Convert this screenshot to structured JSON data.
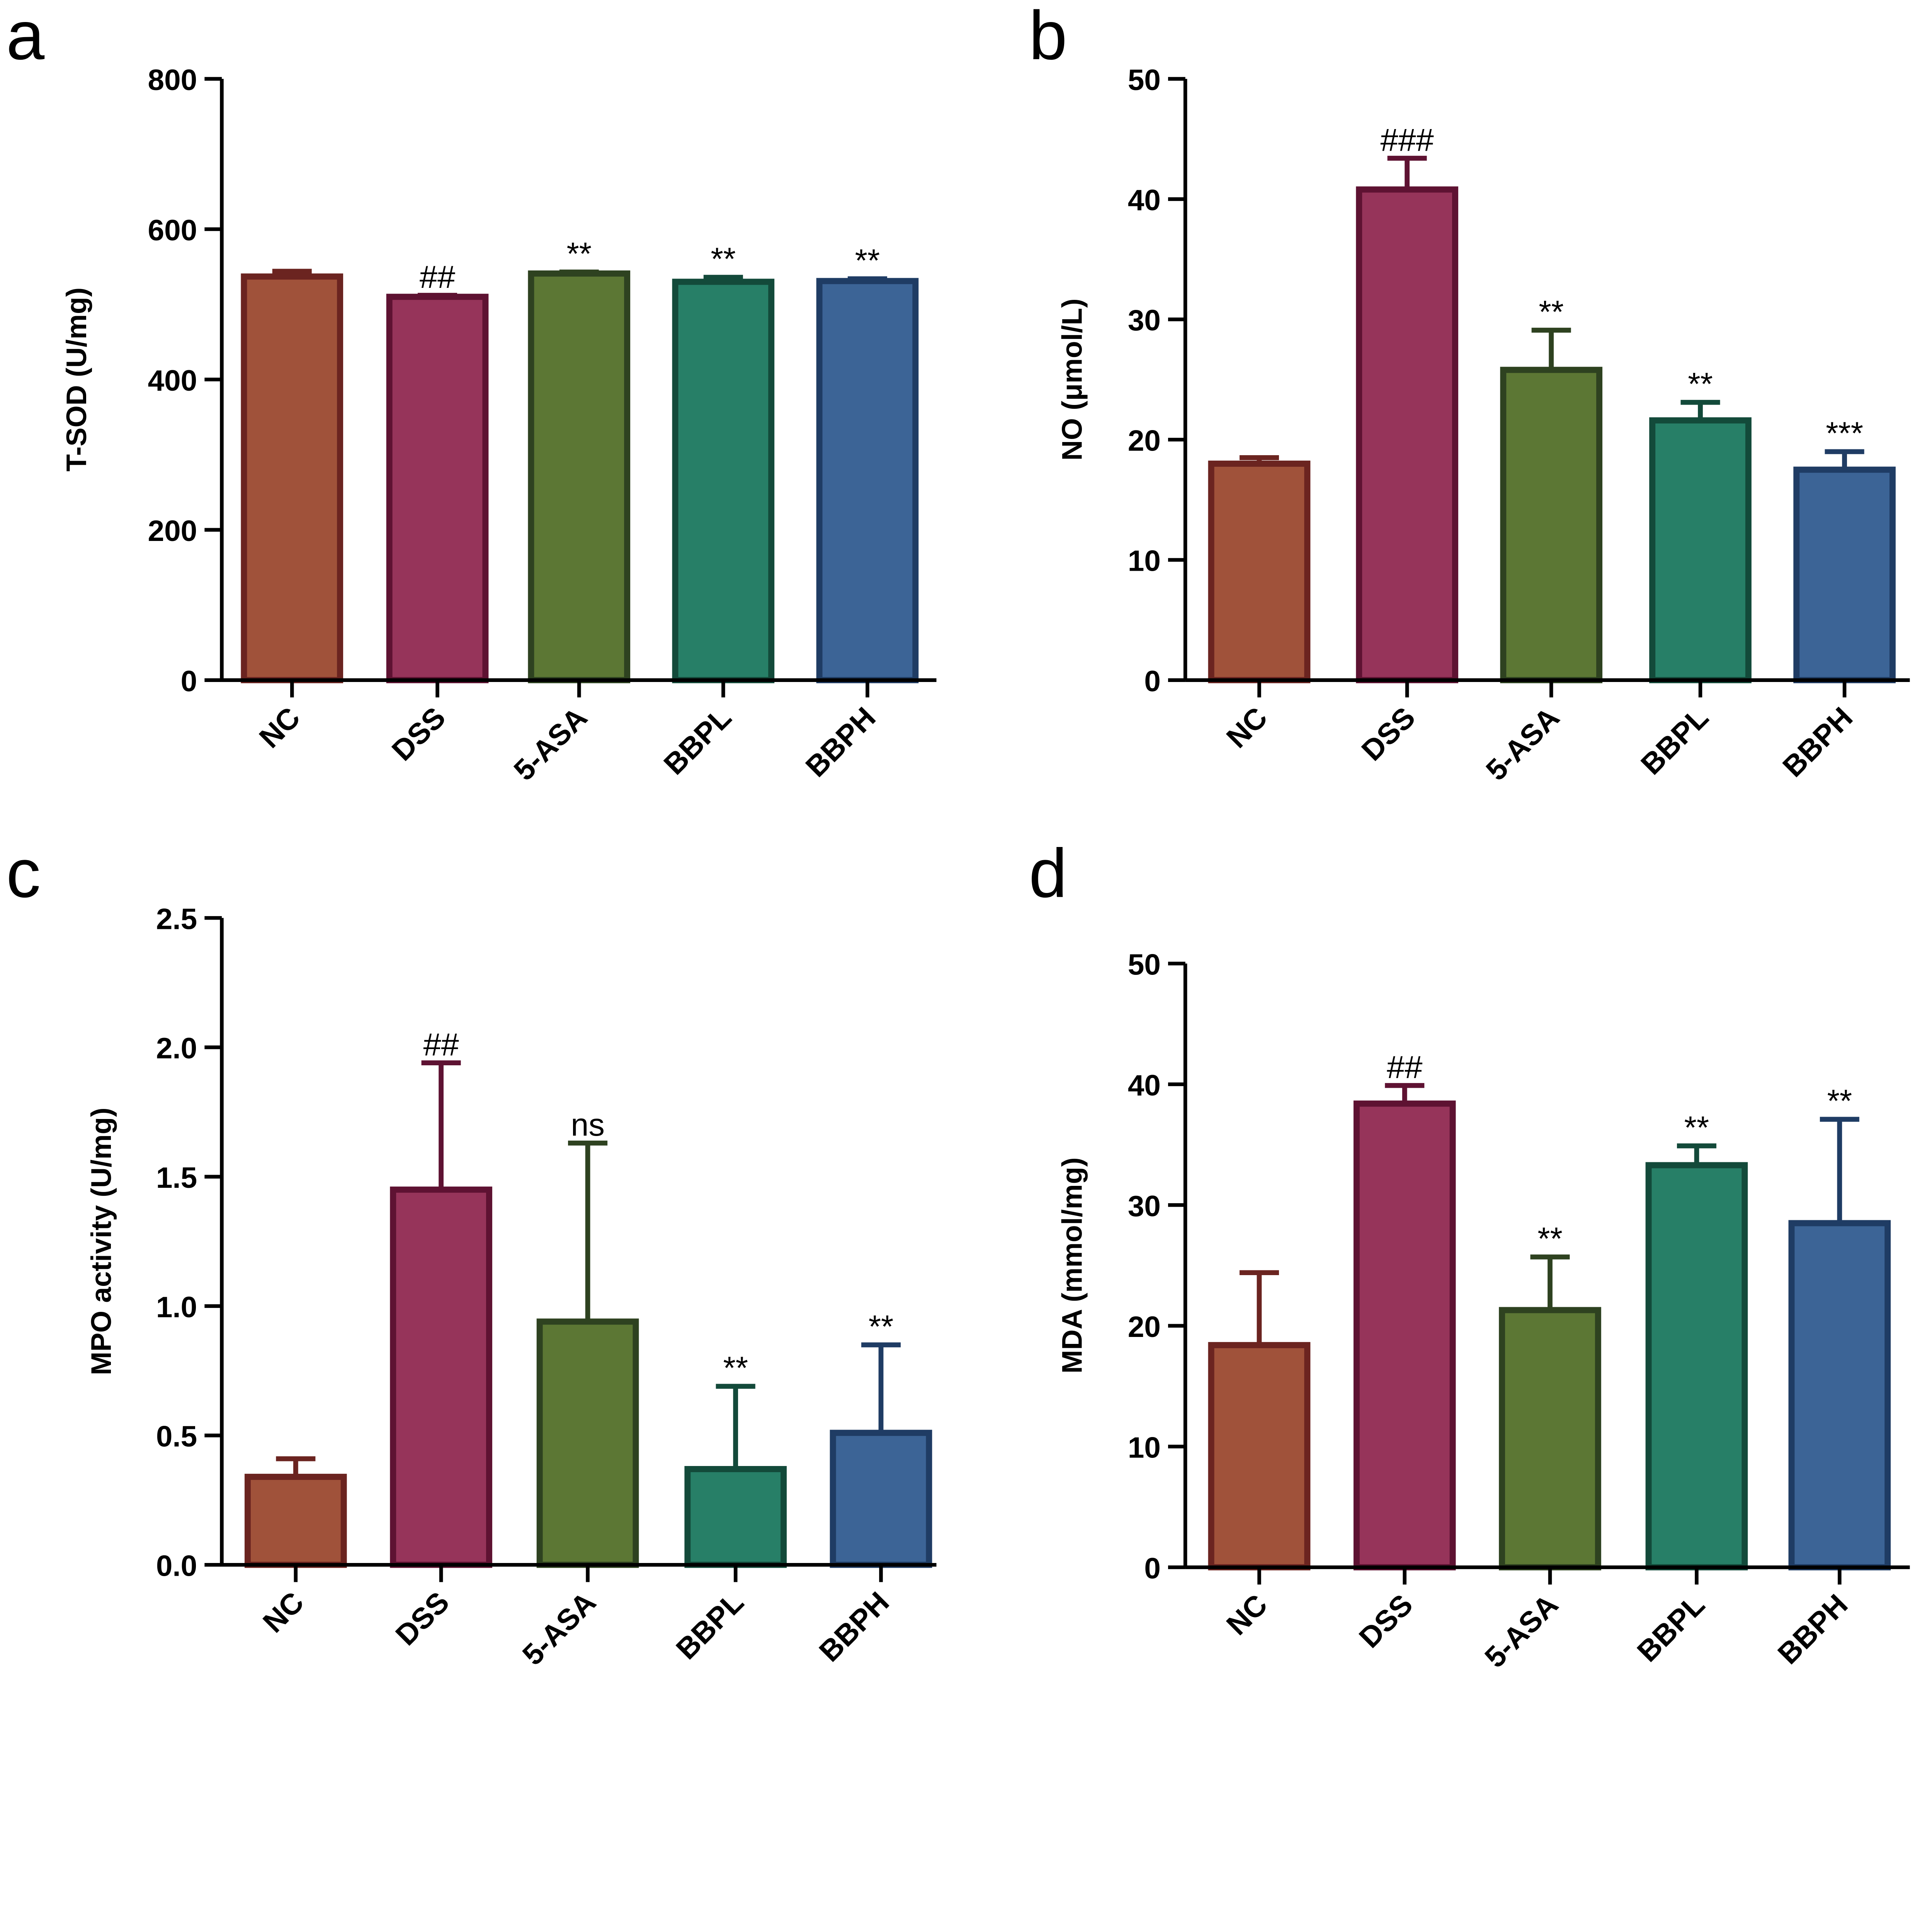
{
  "colors": {
    "NC": {
      "fill": "#A0523A",
      "stroke": "#6B2420"
    },
    "DSS": {
      "fill": "#96345A",
      "stroke": "#5E1232"
    },
    "5-ASA": {
      "fill": "#5C7734",
      "stroke": "#2E4220"
    },
    "BBPL": {
      "fill": "#277F67",
      "stroke": "#134A3A"
    },
    "BBPH": {
      "fill": "#3C6496",
      "stroke": "#1F3C64"
    }
  },
  "chart_data": [
    {
      "panel": "a",
      "type": "bar",
      "categories": [
        "NC",
        "DSS",
        "5-ASA",
        "BBPL",
        "BBPH"
      ],
      "values": [
        537,
        510,
        541,
        530,
        531
      ],
      "errors": [
        7,
        2,
        2,
        6,
        3
      ],
      "annotations": [
        "",
        "##",
        "**",
        "**",
        "**"
      ],
      "ylabel": "T-SOD (U/mg)",
      "ylim": [
        0,
        800
      ],
      "yticks": [
        0,
        200,
        400,
        600,
        800
      ],
      "ytick_labels": [
        "0",
        "200",
        "400",
        "600",
        "800"
      ],
      "grid": false
    },
    {
      "panel": "b",
      "type": "bar",
      "categories": [
        "NC",
        "DSS",
        "5-ASA",
        "BBPL",
        "BBPH"
      ],
      "values": [
        18.0,
        40.8,
        25.8,
        21.6,
        17.5
      ],
      "errors": [
        0.5,
        2.6,
        3.3,
        1.5,
        1.5
      ],
      "annotations": [
        "",
        "###",
        "**",
        "**",
        "***"
      ],
      "ylabel": "NO (μmol/L)",
      "ylim": [
        0,
        50
      ],
      "yticks": [
        0,
        10,
        20,
        30,
        40,
        50
      ],
      "ytick_labels": [
        "0",
        "10",
        "20",
        "30",
        "40",
        "50"
      ],
      "grid": false
    },
    {
      "panel": "c",
      "type": "bar",
      "categories": [
        "NC",
        "DSS",
        "5-ASA",
        "BBPL",
        "BBPH"
      ],
      "values": [
        0.34,
        1.45,
        0.94,
        0.37,
        0.51
      ],
      "errors": [
        0.07,
        0.49,
        0.69,
        0.32,
        0.34
      ],
      "annotations": [
        "",
        "##",
        "ns",
        "**",
        "**"
      ],
      "ylabel": "MPO activity (U/mg)",
      "ylim": [
        0,
        2.5
      ],
      "yticks": [
        0,
        0.5,
        1,
        1.5,
        2,
        2.5
      ],
      "ytick_labels": [
        "0.0",
        "0.5",
        "1.0",
        "1.5",
        "2.0",
        "2.5"
      ],
      "grid": false
    },
    {
      "panel": "d",
      "type": "bar",
      "categories": [
        "NC",
        "DSS",
        "5-ASA",
        "BBPL",
        "BBPH"
      ],
      "values": [
        18.4,
        38.4,
        21.3,
        33.3,
        28.5
      ],
      "errors": [
        6.0,
        1.5,
        4.4,
        1.6,
        8.6
      ],
      "annotations": [
        "",
        "##",
        "**",
        "**",
        "**"
      ],
      "ylabel": "MDA (mmol/mg)",
      "ylim": [
        0,
        50
      ],
      "yticks": [
        0,
        10,
        20,
        30,
        40,
        50
      ],
      "ytick_labels": [
        "0",
        "10",
        "20",
        "30",
        "40",
        "50"
      ],
      "grid": false
    }
  ]
}
